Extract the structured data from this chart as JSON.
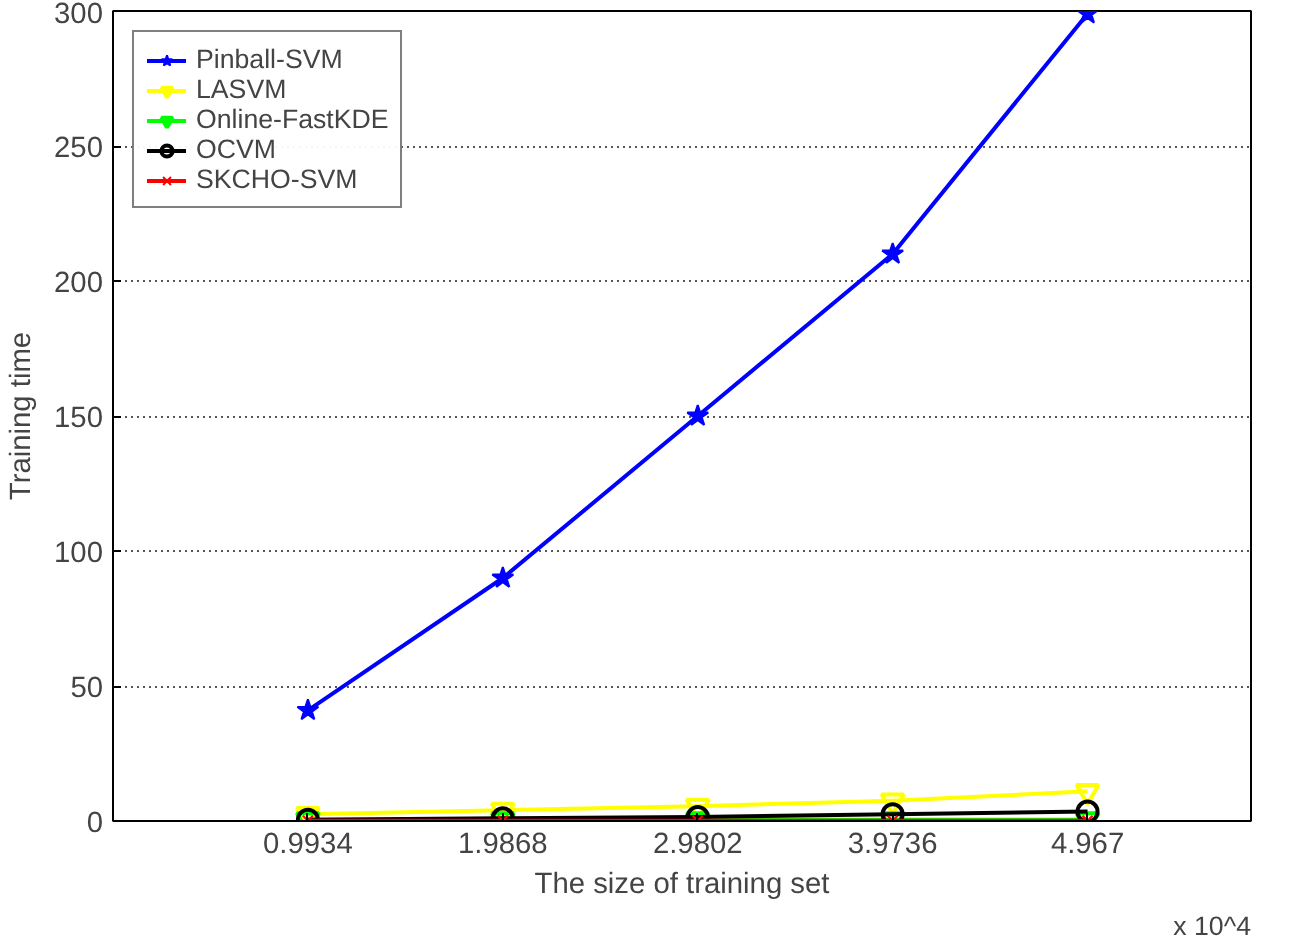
{
  "chart_data": {
    "type": "line",
    "xlabel": "The size of training set",
    "ylabel": "Training time",
    "x": [
      0.9934,
      1.9868,
      2.9802,
      3.9736,
      4.967
    ],
    "xlim": [
      0,
      5.8
    ],
    "xticks": [
      0.9934,
      1.9868,
      2.9802,
      3.9736,
      4.967
    ],
    "ylim": [
      0,
      300
    ],
    "yticks": [
      0,
      50,
      100,
      150,
      200,
      250,
      300
    ],
    "grid": "y",
    "legend": "top left",
    "line_style": "solid",
    "annotations": [
      "x 10^4"
    ],
    "series": [
      {
        "name": "Pinball-SVM",
        "color": "#0000ff",
        "marker": "star",
        "values": [
          41,
          90,
          150,
          210,
          299
        ]
      },
      {
        "name": "LASVM",
        "color": "#ffff00",
        "marker": "triangle",
        "values": [
          2.5,
          4,
          5.5,
          7.5,
          11
        ]
      },
      {
        "name": "Online-FastKDE",
        "color": "#00ff00",
        "marker": "triangle",
        "values": [
          0.5,
          0.5,
          0.5,
          0.5,
          0.5
        ]
      },
      {
        "name": "OCVM",
        "color": "#000000",
        "marker": "circle",
        "values": [
          0.5,
          1,
          1.5,
          2.5,
          3.5
        ]
      },
      {
        "name": "SKCHO-SVM",
        "color": "#ff0000",
        "marker": "cross",
        "values": [
          0.1,
          0.1,
          0.1,
          0.1,
          0.1
        ]
      }
    ]
  }
}
